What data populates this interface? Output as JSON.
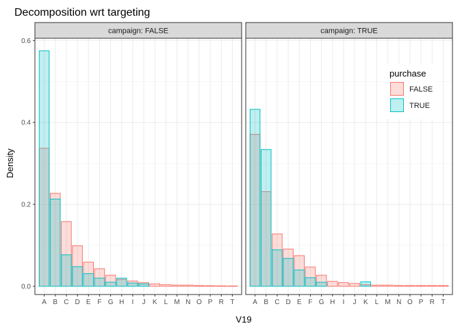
{
  "chart_data": {
    "type": "bar",
    "title": "Decomposition wrt targeting",
    "xlabel": "V19",
    "ylabel": "Density",
    "ylim": [
      0,
      0.62
    ],
    "yticks": [
      "0.0",
      "0.2",
      "0.4",
      "0.6"
    ],
    "ytick_values": [
      0,
      0.2,
      0.4,
      0.6
    ],
    "grid": true,
    "categories": [
      "A",
      "B",
      "C",
      "D",
      "E",
      "F",
      "G",
      "H",
      "I",
      "J",
      "K",
      "L",
      "M",
      "N",
      "O",
      "P",
      "R",
      "T"
    ],
    "legend": {
      "title": "purchase",
      "position": "top-right",
      "items": [
        {
          "label": "FALSE",
          "fill": "#F8766D",
          "stroke": "#F8766D"
        },
        {
          "label": "TRUE",
          "fill": "#00BFC4",
          "stroke": "#00BFC4"
        }
      ]
    },
    "facets": [
      {
        "strip": "campaign: FALSE",
        "series": [
          {
            "name": "FALSE",
            "values": [
              0.337,
              0.227,
              0.158,
              0.099,
              0.059,
              0.043,
              0.027,
              0.017,
              0.013,
              0.009,
              0.006,
              0.004,
              0.003,
              0.003,
              0.002,
              0.0015,
              0.0012,
              0.001
            ]
          },
          {
            "name": "TRUE",
            "values": [
              0.575,
              0.213,
              0.077,
              0.048,
              0.031,
              0.02,
              0.01,
              0.02,
              0.008,
              0.006,
              0,
              0,
              0,
              0,
              0,
              0,
              0,
              0
            ]
          }
        ]
      },
      {
        "strip": "campaign: TRUE",
        "series": [
          {
            "name": "FALSE",
            "values": [
              0.371,
              0.231,
              0.128,
              0.091,
              0.075,
              0.047,
              0.027,
              0.012,
              0.009,
              0.007,
              0.004,
              0.003,
              0.003,
              0.002,
              0.002,
              0.002,
              0.002,
              0.002
            ]
          },
          {
            "name": "TRUE",
            "values": [
              0.432,
              0.334,
              0.089,
              0.068,
              0.04,
              0.021,
              0.01,
              0,
              0,
              0,
              0.011,
              0,
              0,
              0,
              0,
              0,
              0,
              0
            ]
          }
        ]
      }
    ]
  }
}
